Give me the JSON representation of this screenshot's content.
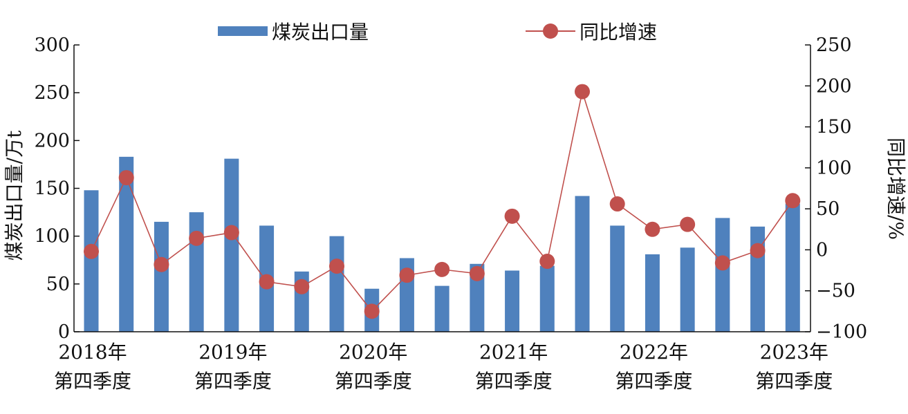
{
  "chart_data": {
    "type": "bar",
    "categories": [
      {
        "line1": "2018年",
        "line2": "第四季度"
      },
      {
        "line1": "",
        "line2": ""
      },
      {
        "line1": "",
        "line2": ""
      },
      {
        "line1": "",
        "line2": ""
      },
      {
        "line1": "2019年",
        "line2": "第四季度"
      },
      {
        "line1": "",
        "line2": ""
      },
      {
        "line1": "",
        "line2": ""
      },
      {
        "line1": "",
        "line2": ""
      },
      {
        "line1": "2020年",
        "line2": "第四季度"
      },
      {
        "line1": "",
        "line2": ""
      },
      {
        "line1": "",
        "line2": ""
      },
      {
        "line1": "",
        "line2": ""
      },
      {
        "line1": "2021年",
        "line2": "第四季度"
      },
      {
        "line1": "",
        "line2": ""
      },
      {
        "line1": "",
        "line2": ""
      },
      {
        "line1": "",
        "line2": ""
      },
      {
        "line1": "2022年",
        "line2": "第四季度"
      },
      {
        "line1": "",
        "line2": ""
      },
      {
        "line1": "",
        "line2": ""
      },
      {
        "line1": "",
        "line2": ""
      },
      {
        "line1": "2023年",
        "line2": "第四季度"
      }
    ],
    "series": [
      {
        "name": "煤炭出口量",
        "type": "bar",
        "axis": "left",
        "color": "#4f81bd",
        "values": [
          148,
          183,
          115,
          125,
          181,
          111,
          63,
          100,
          45,
          77,
          48,
          71,
          64,
          69,
          142,
          111,
          81,
          88,
          119,
          110,
          134
        ]
      },
      {
        "name": "同比增速",
        "type": "line",
        "axis": "right",
        "color": "#c0504d",
        "values": [
          -2,
          88,
          -18,
          14,
          21,
          -39,
          -45,
          -20,
          -75,
          -31,
          -24,
          -29,
          41,
          -14,
          193,
          56,
          25,
          31,
          -16,
          -1,
          60
        ]
      }
    ],
    "y_left": {
      "label": "煤炭出口量/万t",
      "lim": [
        0,
        300
      ],
      "ticks": [
        0,
        50,
        100,
        150,
        200,
        250,
        300
      ]
    },
    "y_right": {
      "label": "同比增速/%",
      "lim": [
        -100,
        250
      ],
      "ticks": [
        -100,
        -50,
        0,
        50,
        100,
        150,
        200,
        250
      ]
    },
    "legend": {
      "placement": "top",
      "items": [
        "煤炭出口量",
        "同比增速"
      ]
    },
    "grid": false
  }
}
